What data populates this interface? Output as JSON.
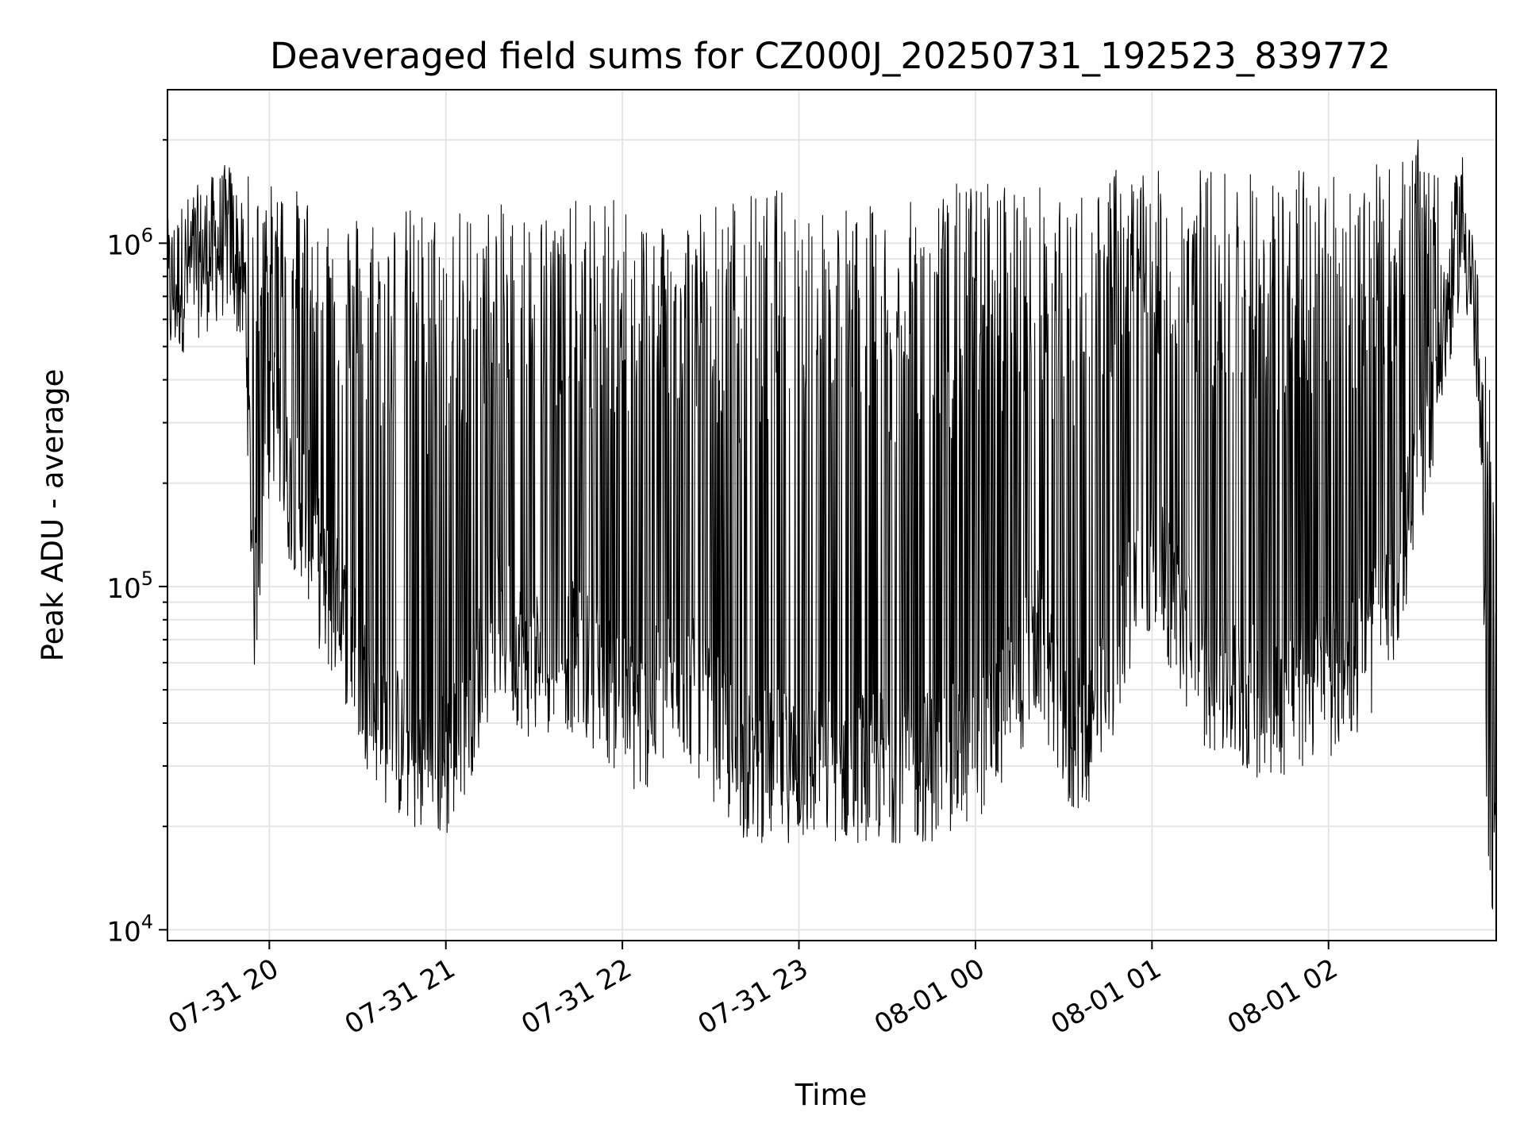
{
  "chart_data": {
    "type": "line",
    "title": "Deaveraged field sums for CZ000J_20250731_192523_839772",
    "xlabel": "Time",
    "ylabel": "Peak ADU - average",
    "yscale": "log",
    "ylim": [
      9300,
      2800000
    ],
    "xlim": [
      "2025-07-31 19:25:23",
      "2025-08-01 02:57:00"
    ],
    "grid": true,
    "x_ticks": [
      {
        "label": "07-31 20",
        "value": "2025-07-31 20:00"
      },
      {
        "label": "07-31 21",
        "value": "2025-07-31 21:00"
      },
      {
        "label": "07-31 22",
        "value": "2025-07-31 22:00"
      },
      {
        "label": "07-31 23",
        "value": "2025-07-31 23:00"
      },
      {
        "label": "08-01 00",
        "value": "2025-08-01 00:00"
      },
      {
        "label": "08-01 01",
        "value": "2025-08-01 01:00"
      },
      {
        "label": "08-01 02",
        "value": "2025-08-01 02:00"
      }
    ],
    "y_ticks": [
      {
        "base": "10",
        "exp": "4",
        "value": 10000
      },
      {
        "base": "10",
        "exp": "5",
        "value": 100000
      },
      {
        "base": "10",
        "exp": "6",
        "value": 1000000
      }
    ],
    "series": [
      {
        "color": "#000000",
        "x": [
          "2025-07-31 19:25:23",
          "2025-07-31 19:33",
          "2025-07-31 19:41",
          "2025-07-31 19:47",
          "2025-07-31 19:52",
          "2025-07-31 19:53",
          "2025-07-31 19:54",
          "2025-07-31 19:55",
          "2025-07-31 19:58",
          "2025-07-31 20:01",
          "2025-07-31 20:06",
          "2025-07-31 20:12",
          "2025-07-31 20:18",
          "2025-07-31 20:25",
          "2025-07-31 20:33",
          "2025-07-31 20:40",
          "2025-07-31 20:48",
          "2025-07-31 21:00",
          "2025-07-31 21:08",
          "2025-07-31 21:17",
          "2025-07-31 21:28",
          "2025-07-31 21:40",
          "2025-07-31 21:52",
          "2025-07-31 22:05",
          "2025-07-31 22:20",
          "2025-07-31 22:40",
          "2025-07-31 23:00",
          "2025-07-31 23:20",
          "2025-07-31 23:36",
          "2025-07-31 23:50",
          "2025-08-01 00:08",
          "2025-08-01 00:22",
          "2025-08-01 00:30",
          "2025-08-01 00:42",
          "2025-08-01 00:55",
          "2025-08-01 01:05",
          "2025-08-01 01:15",
          "2025-08-01 01:25",
          "2025-08-01 01:40",
          "2025-08-01 01:55",
          "2025-08-01 02:10",
          "2025-08-01 02:22",
          "2025-08-01 02:30",
          "2025-08-01 02:36",
          "2025-08-01 02:41",
          "2025-08-01 02:45",
          "2025-08-01 02:48",
          "2025-08-01 02:51",
          "2025-08-01 02:54",
          "2025-08-01 02:57"
        ],
        "y": [
          700000,
          850000,
          950000,
          1050000,
          700000,
          300000,
          150000,
          90000,
          200000,
          350000,
          200000,
          170000,
          100000,
          80000,
          50000,
          38000,
          32000,
          30000,
          45000,
          80000,
          60000,
          65000,
          55000,
          40000,
          55000,
          30000,
          30000,
          30000,
          30000,
          30000,
          40000,
          70000,
          35000,
          40000,
          120000,
          100000,
          60000,
          50000,
          45000,
          50000,
          60000,
          90000,
          200000,
          400000,
          700000,
          1200000,
          900000,
          450000,
          30000,
          13000
        ],
        "spikes_top": [
          1000000,
          1100000,
          1300000,
          1650000,
          1500000,
          1600000,
          1500000,
          1500000,
          1500000,
          1500000,
          1500000,
          1400000,
          1500000,
          1300000,
          1300000,
          1300000,
          1300000,
          1300000,
          1300000,
          1300000,
          1300000,
          1300000,
          1400000,
          1300000,
          1300000,
          1400000,
          1500000,
          1300000,
          1300000,
          1500000,
          1600000,
          1500000,
          1300000,
          1700000,
          1700000,
          1600000,
          1700000,
          1700000,
          1600000,
          1700000,
          1700000,
          1700000,
          2000000,
          2000000,
          1500000,
          1400000,
          1200000,
          800000,
          500000,
          200000
        ]
      }
    ]
  }
}
